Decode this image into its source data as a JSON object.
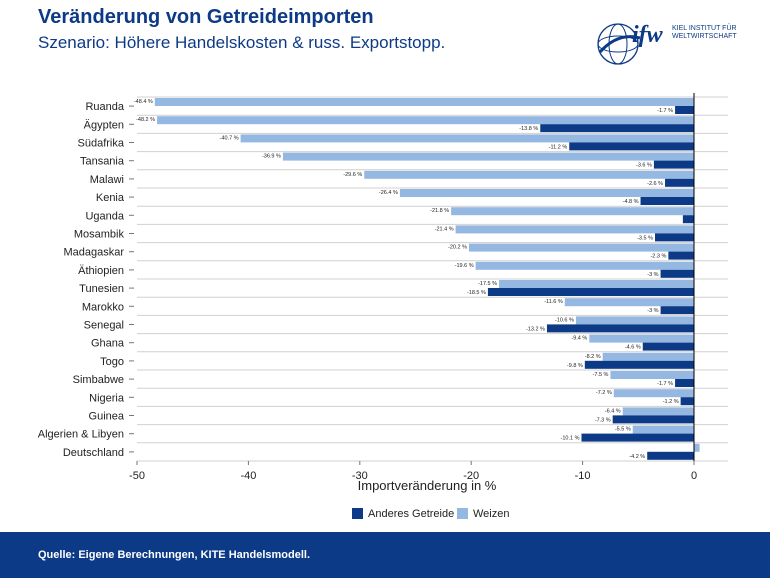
{
  "header": {
    "title": "Veränderung von Getreideimporten",
    "subtitle": "Szenario: Höhere Handelskosten & russ. Exportstopp."
  },
  "logo": {
    "mark": "ifw",
    "line1": "KIEL INSTITUT FÜR",
    "line2": "WELTWIRTSCHAFT"
  },
  "footer": {
    "source": "Quelle: Eigene Berechnungen, KITE Handelsmodell."
  },
  "colors": {
    "brand": "#0d3a86",
    "weizen": "#95b8e3",
    "anderes": "#0d3a86"
  },
  "chart_data": {
    "type": "bar",
    "orientation": "horizontal",
    "categories": [
      "Ruanda",
      "Ägypten",
      "Südafrika",
      "Tansania",
      "Malawi",
      "Kenia",
      "Uganda",
      "Mosambik",
      "Madagaskar",
      "Äthiopien",
      "Tunesien",
      "Marokko",
      "Senegal",
      "Ghana",
      "Togo",
      "Simbabwe",
      "Nigeria",
      "Guinea",
      "Algerien & Libyen",
      "Deutschland"
    ],
    "series": [
      {
        "name": "Weizen",
        "values": [
          -48.4,
          -48.2,
          -40.7,
          -36.9,
          -29.6,
          -26.4,
          -21.8,
          -21.4,
          -20.2,
          -19.6,
          -17.5,
          -11.6,
          -10.6,
          -9.4,
          -8.2,
          -7.5,
          -7.2,
          -6.4,
          -5.5,
          0.5
        ],
        "labels": [
          "-48.4 %",
          "-48.2 %",
          "-40.7 %",
          "-36.9 %",
          "-29.6 %",
          "-26.4 %",
          "-21.8 %",
          "-21.4 %",
          "-20.2 %",
          "-19.6 %",
          "-17.5 %",
          "-11.6 %",
          "-10.6 %",
          "-9.4 %",
          "-8.2 %",
          "-7.5 %",
          "-7.2 %",
          "-6.4 %",
          "-5.5 %",
          ""
        ]
      },
      {
        "name": "Anderes Getreide",
        "values": [
          -1.7,
          -13.8,
          -11.2,
          -3.6,
          -2.6,
          -4.8,
          -1,
          -3.5,
          -2.3,
          -3,
          -18.5,
          -3,
          -13.2,
          -4.6,
          -9.8,
          -1.7,
          -1.2,
          -7.3,
          -10.1,
          -4.2
        ],
        "labels": [
          "-1.7 %",
          "-13.8 %",
          "-11.2 %",
          "-3.6 %",
          "-2.6 %",
          "-4.8 %",
          "",
          "-3.5 %",
          "-2.3 %",
          "-3 %",
          "-18.5 %",
          "-3 %",
          "-13.2 %",
          "-4.6 %",
          "-9.8 %",
          "-1.7 %",
          "-1.2 %",
          "-7.3 %",
          "-10.1 %",
          "-4.2 %"
        ]
      }
    ],
    "xlim": [
      -50,
      3
    ],
    "xticks": [
      "-50",
      "-40",
      "-30",
      "-20",
      "-10",
      "0"
    ],
    "tick_values": [
      -50,
      -40,
      -30,
      -20,
      -10,
      0
    ],
    "xlabel": "Importveränderung in %",
    "ylabel": "",
    "legend": {
      "placement": "bottom",
      "entries": [
        "Anderes Getreide",
        "Weizen"
      ]
    },
    "grid": true
  }
}
